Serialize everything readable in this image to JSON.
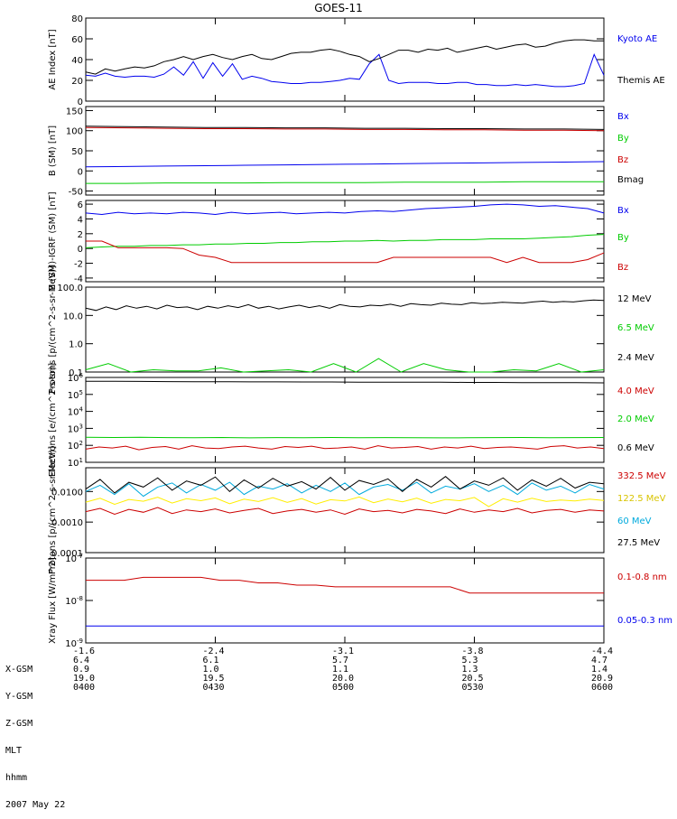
{
  "title": "GOES-11",
  "colors": {
    "black": "#000000",
    "blue": "#0000ee",
    "red": "#cc0000",
    "green": "#00cc00",
    "cyan": "#00aadd",
    "yellow": "#ffee00"
  },
  "time_ticks": [
    "0400",
    "0430",
    "0500",
    "0530",
    "0600"
  ],
  "footer": {
    "rows": [
      {
        "label": "X-GSM",
        "values": [
          "-1.6",
          "-2.4",
          "-3.1",
          "-3.8",
          "-4.4"
        ]
      },
      {
        "label": "Y-GSM",
        "values": [
          "6.4",
          "6.1",
          "5.7",
          "5.3",
          "4.7"
        ]
      },
      {
        "label": "Z-GSM",
        "values": [
          "0.9",
          "1.0",
          "1.1",
          "1.3",
          "1.4"
        ]
      },
      {
        "label": "MLT",
        "values": [
          "19.0",
          "19.5",
          "20.0",
          "20.5",
          "20.9"
        ]
      },
      {
        "label": "hhmm",
        "values": [
          "0400",
          "0430",
          "0500",
          "0530",
          "0600"
        ]
      }
    ],
    "date": "2007 May 22"
  },
  "chart_data": [
    {
      "type": "line",
      "ylabel": "AE Index [nT]",
      "ylim": [
        0,
        80
      ],
      "yticks": [
        "0",
        "20",
        "40",
        "60",
        "80"
      ],
      "series": [
        {
          "name": "Kyoto AE",
          "color": "#0000ee",
          "values": [
            25,
            24,
            27,
            24,
            23,
            24,
            24,
            23,
            26,
            33,
            25,
            38,
            22,
            37,
            24,
            36,
            21,
            24,
            22,
            19,
            18,
            17,
            17,
            18,
            18,
            19,
            20,
            22,
            21,
            36,
            45,
            20,
            17,
            18,
            18,
            18,
            17,
            17,
            18,
            18,
            16,
            16,
            15,
            15,
            16,
            15,
            16,
            15,
            14,
            14,
            15,
            17,
            45,
            25
          ]
        },
        {
          "name": "Themis AE",
          "color": "#000000",
          "values": [
            28,
            26,
            31,
            29,
            31,
            33,
            32,
            34,
            38,
            40,
            43,
            40,
            43,
            45,
            42,
            40,
            43,
            45,
            41,
            40,
            43,
            46,
            47,
            47,
            49,
            50,
            48,
            45,
            43,
            38,
            41,
            45,
            49,
            49,
            47,
            50,
            49,
            51,
            47,
            49,
            51,
            53,
            50,
            52,
            54,
            55,
            52,
            53,
            56,
            58,
            59,
            59,
            58,
            58
          ]
        }
      ]
    },
    {
      "type": "line",
      "ylabel": "B (SM) [nT]",
      "ylim": [
        -60,
        160
      ],
      "yticks": [
        "-50",
        "0",
        "50",
        "100",
        "150"
      ],
      "series": [
        {
          "name": "Bx",
          "color": "#0000ee",
          "values": [
            10,
            11,
            12,
            13,
            14,
            15,
            16,
            17,
            18,
            19,
            20,
            21,
            22,
            23
          ]
        },
        {
          "name": "By",
          "color": "#00cc00",
          "values": [
            -31,
            -31,
            -30,
            -30,
            -30,
            -29,
            -29,
            -29,
            -28,
            -28,
            -28,
            -27,
            -27,
            -27
          ]
        },
        {
          "name": "Bz",
          "color": "#cc0000",
          "values": [
            108,
            107,
            106,
            105,
            105,
            104,
            104,
            103,
            103,
            102,
            102,
            101,
            101,
            100
          ]
        },
        {
          "name": "Bmag",
          "color": "#000000",
          "values": [
            111,
            110,
            109,
            108,
            108,
            107,
            107,
            106,
            106,
            105,
            105,
            104,
            104,
            103
          ]
        }
      ]
    },
    {
      "type": "line",
      "ylabel": "B (SM)-IGRF (SM) [nT]",
      "ylim": [
        -4.5,
        6.5
      ],
      "yticks": [
        "-4",
        "-2",
        "0",
        "2",
        "4",
        "6"
      ],
      "series": [
        {
          "name": "Bx",
          "color": "#0000ee",
          "values": [
            4.8,
            4.6,
            4.9,
            4.7,
            4.8,
            4.7,
            4.9,
            4.8,
            4.6,
            4.9,
            4.7,
            4.8,
            4.9,
            4.7,
            4.8,
            4.9,
            4.8,
            5.0,
            5.1,
            5.0,
            5.2,
            5.4,
            5.5,
            5.6,
            5.7,
            5.9,
            6.0,
            5.9,
            5.7,
            5.8,
            5.6,
            5.4,
            4.8
          ]
        },
        {
          "name": "By",
          "color": "#00cc00",
          "values": [
            0.1,
            0.2,
            0.3,
            0.3,
            0.4,
            0.4,
            0.5,
            0.5,
            0.6,
            0.6,
            0.7,
            0.7,
            0.8,
            0.8,
            0.9,
            0.9,
            1.0,
            1.0,
            1.1,
            1.0,
            1.1,
            1.1,
            1.2,
            1.2,
            1.2,
            1.3,
            1.3,
            1.3,
            1.4,
            1.5,
            1.6,
            1.8,
            1.9
          ]
        },
        {
          "name": "Bz",
          "color": "#cc0000",
          "values": [
            1.0,
            1.0,
            0.1,
            0.1,
            0.1,
            0.1,
            0.0,
            -0.9,
            -1.2,
            -1.9,
            -1.9,
            -1.9,
            -1.9,
            -1.9,
            -1.9,
            -1.9,
            -1.9,
            -1.9,
            -1.9,
            -1.2,
            -1.2,
            -1.2,
            -1.2,
            -1.2,
            -1.2,
            -1.2,
            -1.9,
            -1.2,
            -1.9,
            -1.9,
            -1.9,
            -1.5,
            -0.6
          ]
        }
      ]
    },
    {
      "type": "line",
      "ylabel": "Protons [p/(cm^2-s-sr-MeV)]",
      "yscale": "log",
      "ylim": [
        0.1,
        100
      ],
      "yticks": [
        "0.1",
        "1.0",
        "10.0",
        "100.0"
      ],
      "series": [
        {
          "name": "12 MeV",
          "color": "#000000",
          "values": [
            18,
            15,
            20,
            16,
            22,
            18,
            21,
            17,
            23,
            19,
            20,
            16,
            21,
            18,
            22,
            19,
            24,
            18,
            21,
            17,
            20,
            23,
            19,
            22,
            18,
            24,
            21,
            20,
            23,
            22,
            25,
            21,
            26,
            24,
            23,
            27,
            25,
            24,
            28,
            26,
            27,
            29,
            28,
            27,
            30,
            32,
            29,
            31,
            30,
            33,
            35,
            34
          ]
        },
        {
          "name": "6.5 MeV",
          "color": "#00cc00",
          "values": [
            0.12,
            0.2,
            0.1,
            0.12,
            0.11,
            0.11,
            0.14,
            0.1,
            0.11,
            0.12,
            0.1,
            0.2,
            0.1,
            0.3,
            0.1,
            0.2,
            0.12,
            0.1,
            0.1,
            0.12,
            0.11,
            0.2,
            0.1,
            0.12
          ]
        },
        {
          "name": "2.4 MeV",
          "color": "#000000",
          "values": []
        }
      ]
    },
    {
      "type": "line",
      "ylabel": "Electrons [e/(cm^2-s-sr)]",
      "yscale": "log",
      "ylim": [
        10,
        1000000
      ],
      "yticks": [
        "10^1",
        "10^2",
        "10^3",
        "10^4",
        "10^5",
        "10^6"
      ],
      "series": [
        {
          "name": "4.0 MeV",
          "color": "#cc0000",
          "values": [
            60,
            80,
            70,
            90,
            55,
            75,
            85,
            60,
            95,
            70,
            65,
            80,
            90,
            70,
            60,
            85,
            75,
            90,
            65,
            70,
            80,
            60,
            95,
            70,
            75,
            85,
            60,
            80,
            70,
            90,
            65,
            75,
            80,
            70,
            60,
            85,
            95,
            70,
            80,
            65
          ]
        },
        {
          "name": "2.0 MeV",
          "color": "#00cc00",
          "values": [
            300,
            290,
            300,
            285,
            280,
            290,
            275,
            285,
            280,
            290,
            280,
            285,
            280,
            275,
            280,
            285,
            290,
            280,
            285,
            290
          ]
        },
        {
          "name": "0.6 MeV",
          "color": "#000000",
          "values": [
            600000,
            590000,
            580000,
            570000,
            560000,
            560000,
            550000,
            550000,
            540000,
            540000,
            530000,
            530000,
            520000,
            520000,
            510000,
            510000,
            500000,
            500000,
            490000,
            480000
          ]
        }
      ]
    },
    {
      "type": "line",
      "ylabel": "Protons [p/(cm^2-s-sr-MeV)]",
      "yscale": "log",
      "ylim": [
        0.0001,
        0.06
      ],
      "yticks": [
        "0.0001",
        "0.0010",
        "0.0100"
      ],
      "series": [
        {
          "name": "332.5 MeV",
          "color": "#cc0000",
          "values": [
            0.0022,
            0.0028,
            0.0018,
            0.0026,
            0.0021,
            0.003,
            0.0019,
            0.0025,
            0.0022,
            0.0027,
            0.002,
            0.0024,
            0.0028,
            0.0019,
            0.0023,
            0.0026,
            0.0021,
            0.0025,
            0.0018,
            0.0027,
            0.0022,
            0.0024,
            0.002,
            0.0026,
            0.0023,
            0.0019,
            0.0027,
            0.0021,
            0.0025,
            0.0022,
            0.0028,
            0.002,
            0.0024,
            0.0026,
            0.0021,
            0.0025,
            0.0023
          ]
        },
        {
          "name": "122.5 MeV",
          "color": "#ffee00",
          "values": [
            0.0045,
            0.006,
            0.0038,
            0.0055,
            0.0048,
            0.0065,
            0.0042,
            0.0058,
            0.005,
            0.0062,
            0.004,
            0.0056,
            0.0047,
            0.0063,
            0.0044,
            0.0059,
            0.0039,
            0.0054,
            0.0049,
            0.0066,
            0.0043,
            0.0057,
            0.0046,
            0.0061,
            0.0041,
            0.0055,
            0.005,
            0.0064,
            0.0032,
            0.0058,
            0.0045,
            0.006,
            0.0047,
            0.0053,
            0.0049,
            0.0056,
            0.0051
          ]
        },
        {
          "name": "60 MeV",
          "color": "#00aadd",
          "values": [
            0.01,
            0.016,
            0.008,
            0.018,
            0.007,
            0.014,
            0.019,
            0.009,
            0.017,
            0.011,
            0.02,
            0.008,
            0.015,
            0.012,
            0.018,
            0.009,
            0.016,
            0.01,
            0.019,
            0.008,
            0.014,
            0.017,
            0.011,
            0.02,
            0.009,
            0.015,
            0.012,
            0.018,
            0.01,
            0.016,
            0.008,
            0.019,
            0.011,
            0.015,
            0.009,
            0.017,
            0.012
          ]
        },
        {
          "name": "27.5 MeV",
          "color": "#000000",
          "values": [
            0.012,
            0.025,
            0.009,
            0.02,
            0.014,
            0.028,
            0.011,
            0.022,
            0.016,
            0.03,
            0.01,
            0.024,
            0.013,
            0.027,
            0.015,
            0.021,
            0.012,
            0.029,
            0.011,
            0.023,
            0.017,
            0.026,
            0.01,
            0.025,
            0.014,
            0.031,
            0.012,
            0.022,
            0.016,
            0.028,
            0.011,
            0.024,
            0.015,
            0.027,
            0.013,
            0.02,
            0.018
          ]
        }
      ]
    },
    {
      "type": "line",
      "ylabel": "Xray Flux [W/m^2]",
      "yscale": "log",
      "ylim": [
        1e-09,
        1e-07
      ],
      "yticks": [
        "10^-9",
        "10^-8",
        "10^-7"
      ],
      "series": [
        {
          "name": "0.1-0.8 nm",
          "color": "#cc0000",
          "values": [
            3e-08,
            3e-08,
            3e-08,
            3.5e-08,
            3.5e-08,
            3.5e-08,
            3.5e-08,
            3e-08,
            3e-08,
            2.6e-08,
            2.6e-08,
            2.3e-08,
            2.3e-08,
            2.1e-08,
            2.1e-08,
            2.1e-08,
            2.1e-08,
            2.1e-08,
            2.1e-08,
            2.1e-08,
            1.5e-08,
            1.5e-08,
            1.5e-08,
            1.5e-08,
            1.5e-08,
            1.5e-08,
            1.5e-08,
            1.5e-08
          ]
        },
        {
          "name": "0.05-0.3 nm",
          "color": "#0000ee",
          "values": [
            2.5e-09,
            2.5e-09,
            2.5e-09,
            2.5e-09,
            2.5e-09,
            2.5e-09,
            2.5e-09,
            2.5e-09,
            2.5e-09,
            2.5e-09,
            2.5e-09,
            2.5e-09,
            2.5e-09,
            2.5e-09
          ]
        }
      ]
    }
  ]
}
